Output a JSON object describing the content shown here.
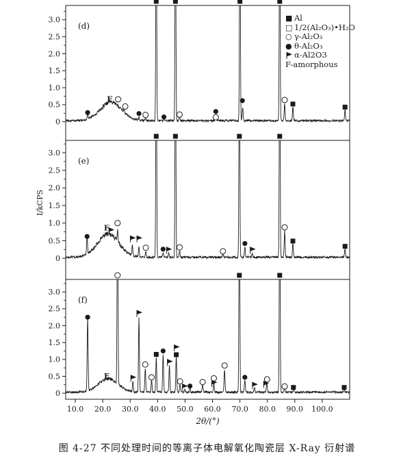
{
  "chart_data": {
    "type": "line",
    "title": "图 4-27  不同处理时间的等离子体电解氧化陶瓷层 X-Ray 衍射谱",
    "xlabel": "2θ/(°)",
    "ylabel": "I/kCPS",
    "grid": false,
    "legend_position": "top-right-inside-panel-d",
    "xlim": [
      6.5,
      110
    ],
    "xtick_values": [
      10,
      20,
      30,
      40,
      50,
      60,
      70,
      80,
      90,
      100
    ],
    "xtick_labels": [
      "10.0",
      "20.0",
      "30.0",
      "40.0",
      "50.0",
      "60.0",
      "70.0",
      "80.0",
      "90.0",
      "100.0"
    ],
    "ytick_values": [
      0,
      0.5,
      1.0,
      1.5,
      2.0,
      2.5,
      3.0
    ],
    "ytick_labels": [
      "0",
      "0.5",
      "1.0",
      "1.5",
      "2.0",
      "2.5",
      "3.0"
    ],
    "marker_key": {
      "fs": "filled-square Al",
      "os": "open-square boehmite",
      "oc": "open-circle gamma-Al2O3",
      "fc": "filled-circle theta-Al2O3",
      "fl": "flag alpha-Al2O3",
      "F": "letter-F amorphous"
    },
    "legend": [
      {
        "marker": "fs",
        "label": "Al"
      },
      {
        "marker": "os",
        "label": "1/2(Al₂O₃)•H₂O"
      },
      {
        "marker": "oc",
        "label": "γ-Al₂O₃"
      },
      {
        "marker": "fc",
        "label": "θ-Al₂O₃"
      },
      {
        "marker": "fl",
        "label": "α-Al2O3"
      },
      {
        "marker": "none",
        "label": "F-amorphous"
      }
    ],
    "panels": [
      {
        "id": "d",
        "label": "(d)",
        "ylim": [
          -0.55,
          3.42
        ],
        "hump": {
          "center": 23,
          "width": 5.5,
          "height": 0.55
        },
        "peaks": [
          [
            14.5,
            0.15
          ],
          [
            27.8,
            0.1
          ],
          [
            33.2,
            0.08
          ],
          [
            35.6,
            0.06
          ],
          [
            42.3,
            0.06
          ],
          [
            48.0,
            0.12
          ],
          [
            61.2,
            0.1
          ],
          [
            71.0,
            0.38
          ],
          [
            86.3,
            0.5
          ],
          [
            89.3,
            0.42
          ],
          [
            108.3,
            0.33
          ]
        ],
        "offscale_peaks": [
          39.5,
          46.5,
          70.0,
          84.5
        ],
        "markers": [
          [
            "fc",
            14.5,
            0.27
          ],
          [
            "F",
            22.5,
            0.66
          ],
          [
            "oc",
            25.6,
            0.66
          ],
          [
            "oc",
            28.2,
            0.45
          ],
          [
            "fc",
            33.2,
            0.24
          ],
          [
            "oc",
            35.6,
            0.2
          ],
          [
            "fc",
            42.3,
            0.14
          ],
          [
            "oc",
            48.0,
            0.21
          ],
          [
            "fc",
            61.2,
            0.3
          ],
          [
            "oc",
            61.2,
            0.13
          ],
          [
            "fc",
            70.9,
            0.62
          ],
          [
            "oc",
            86.3,
            0.64
          ],
          [
            "fs",
            89.3,
            0.52
          ],
          [
            "fs",
            108.3,
            0.43
          ]
        ],
        "top_markers": [
          [
            "fs",
            39.5
          ],
          [
            "fs",
            46.5
          ],
          [
            "fs",
            70.0
          ],
          [
            "fs",
            84.5
          ]
        ]
      },
      {
        "id": "e",
        "label": "(e)",
        "ylim": [
          -0.6,
          3.35
        ],
        "hump": {
          "center": 22,
          "width": 5.5,
          "height": 0.66
        },
        "peaks": [
          [
            14.3,
            0.5
          ],
          [
            25.4,
            0.33
          ],
          [
            30.8,
            0.28
          ],
          [
            33.2,
            0.28
          ],
          [
            35.7,
            0.16
          ],
          [
            42.0,
            0.13
          ],
          [
            44.0,
            0.11
          ],
          [
            48.0,
            0.2
          ],
          [
            63.8,
            0.1
          ],
          [
            71.8,
            0.3
          ],
          [
            74.5,
            0.11
          ],
          [
            86.3,
            0.75
          ],
          [
            89.3,
            0.4
          ],
          [
            108.3,
            0.25
          ]
        ],
        "offscale_peaks": [
          39.5,
          46.5,
          69.8,
          84.5
        ],
        "markers": [
          [
            "fc",
            14.3,
            0.62
          ],
          [
            "F",
            21.4,
            0.86
          ],
          [
            "fl",
            23.0,
            0.78
          ],
          [
            "oc",
            25.4,
            1.0
          ],
          [
            "fl",
            30.8,
            0.55
          ],
          [
            "fl",
            33.2,
            0.55
          ],
          [
            "oc",
            35.7,
            0.3
          ],
          [
            "fc",
            42.0,
            0.26
          ],
          [
            "fl",
            44.0,
            0.23
          ],
          [
            "oc",
            48.0,
            0.31
          ],
          [
            "oc",
            63.8,
            0.2
          ],
          [
            "fc",
            71.8,
            0.42
          ],
          [
            "fl",
            74.5,
            0.23
          ],
          [
            "oc",
            86.3,
            0.88
          ],
          [
            "fs",
            89.3,
            0.49
          ],
          [
            "fs",
            108.3,
            0.34
          ]
        ],
        "top_markers": [
          [
            "fs",
            39.5
          ],
          [
            "fs",
            46.5
          ],
          [
            "fs",
            69.8
          ],
          [
            "fs",
            84.5
          ]
        ]
      },
      {
        "id": "f",
        "label": "(f)",
        "ylim": [
          -0.18,
          3.37
        ],
        "hump": {
          "center": 22,
          "width": 5.0,
          "height": 0.4
        },
        "peaks": [
          [
            14.5,
            2.15
          ],
          [
            31.0,
            0.3
          ],
          [
            33.2,
            2.2
          ],
          [
            35.5,
            0.72
          ],
          [
            37.8,
            0.38
          ],
          [
            39.5,
            1.02
          ],
          [
            42.0,
            1.12
          ],
          [
            44.3,
            0.78
          ],
          [
            46.8,
            1.08
          ],
          [
            48.2,
            0.24
          ],
          [
            49.8,
            0.1
          ],
          [
            51.8,
            0.12
          ],
          [
            56.4,
            0.24
          ],
          [
            60.5,
            0.27
          ],
          [
            64.4,
            0.68
          ],
          [
            71.8,
            0.38
          ],
          [
            75.3,
            0.14
          ],
          [
            79.8,
            0.27
          ],
          [
            86.3,
            0.12
          ],
          [
            89.5,
            0.1
          ],
          [
            108.0,
            0.1
          ]
        ],
        "offscale_peaks": [
          25.4,
          69.8,
          84.5
        ],
        "markers": [
          [
            "fc",
            14.5,
            2.25
          ],
          [
            "F",
            21.4,
            0.5
          ],
          [
            "fl",
            31.0,
            0.44
          ],
          [
            "fl",
            33.2,
            2.36
          ],
          [
            "oc",
            35.5,
            0.85
          ],
          [
            "oc",
            37.8,
            0.47
          ],
          [
            "fs",
            39.5,
            1.15
          ],
          [
            "fc",
            42.0,
            1.25
          ],
          [
            "fl",
            44.3,
            0.91
          ],
          [
            "fl",
            46.8,
            1.34
          ],
          [
            "fs",
            46.8,
            1.14
          ],
          [
            "oc",
            48.2,
            0.35
          ],
          [
            "fl",
            49.8,
            0.18
          ],
          [
            "fc",
            51.8,
            0.21
          ],
          [
            "oc",
            56.4,
            0.33
          ],
          [
            "oc",
            60.5,
            0.44
          ],
          [
            "fl",
            60.5,
            0.29
          ],
          [
            "oc",
            64.4,
            0.82
          ],
          [
            "fc",
            71.8,
            0.47
          ],
          [
            "fl",
            75.3,
            0.23
          ],
          [
            "fl",
            79.4,
            0.26
          ],
          [
            "oc",
            79.9,
            0.41
          ],
          [
            "oc",
            86.3,
            0.2
          ],
          [
            "fs",
            89.5,
            0.17
          ],
          [
            "fs",
            108.0,
            0.17
          ]
        ],
        "top_markers": [
          [
            "fs",
            69.8
          ],
          [
            "fs",
            84.5
          ],
          [
            "oc",
            25.4
          ]
        ]
      }
    ]
  }
}
